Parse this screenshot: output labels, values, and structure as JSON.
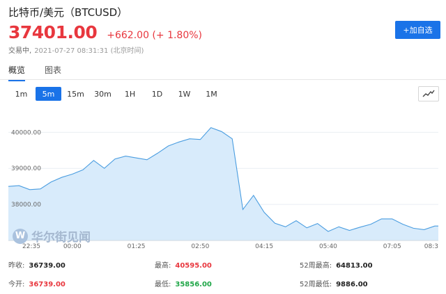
{
  "header": {
    "title": "比特币/美元（BTCUSD）",
    "price": "37401.00",
    "change": "+662.00 (+ 1.80%)",
    "status": "交易中,",
    "timestamp": "2021-07-27 08:31:31 (北京时间)",
    "add_button": "+加自选"
  },
  "view_tabs": [
    "概览",
    "图表"
  ],
  "range_buttons": [
    "1m",
    "5m",
    "15m",
    "30m",
    "1H",
    "1D",
    "1W",
    "1M"
  ],
  "active_range": "5m",
  "watermark": {
    "glyph": "W",
    "text": "华尔街见闻"
  },
  "stats": {
    "prev_close_label": "昨收:",
    "prev_close": "36739.00",
    "high_label": "最高:",
    "high": "40595.00",
    "high52_label": "52周最高:",
    "high52": "64813.00",
    "open_label": "今开:",
    "open": "36739.00",
    "low_label": "最低:",
    "low": "35856.00",
    "low52_label": "52周最低:",
    "low52": "9886.00"
  },
  "colors": {
    "accent": "#1a73e8",
    "up": "#e8373e",
    "down": "#1fa647",
    "line": "#4a9de0",
    "fill": "#d8ebfb"
  },
  "chart_data": {
    "type": "area",
    "yticks": [
      38000,
      39000,
      40000
    ],
    "ytick_labels": [
      "38000.00",
      "39000.00",
      "40000.00"
    ],
    "ylim": [
      37000,
      40700
    ],
    "xlim": [
      0,
      121
    ],
    "xticks": [
      0,
      18,
      36,
      54,
      72,
      90,
      108,
      121
    ],
    "xtick_labels": [
      "22:35",
      "00:00",
      "01:25",
      "02:50",
      "04:15",
      "05:40",
      "07:05",
      "08:3"
    ],
    "x": [
      0,
      3,
      6,
      9,
      12,
      15,
      18,
      21,
      24,
      27,
      30,
      33,
      36,
      39,
      42,
      45,
      48,
      51,
      54,
      57,
      60,
      63,
      66,
      69,
      72,
      75,
      78,
      81,
      84,
      87,
      90,
      93,
      96,
      99,
      102,
      105,
      108,
      111,
      114,
      117,
      120,
      121
    ],
    "values": [
      38500,
      38520,
      38410,
      38430,
      38620,
      38750,
      38840,
      38960,
      39220,
      39000,
      39260,
      39340,
      39290,
      39240,
      39420,
      39620,
      39730,
      39820,
      39800,
      40130,
      40020,
      39820,
      37860,
      38250,
      37780,
      37480,
      37380,
      37550,
      37350,
      37470,
      37250,
      37380,
      37280,
      37370,
      37450,
      37600,
      37600,
      37450,
      37340,
      37300,
      37400,
      37401
    ]
  }
}
